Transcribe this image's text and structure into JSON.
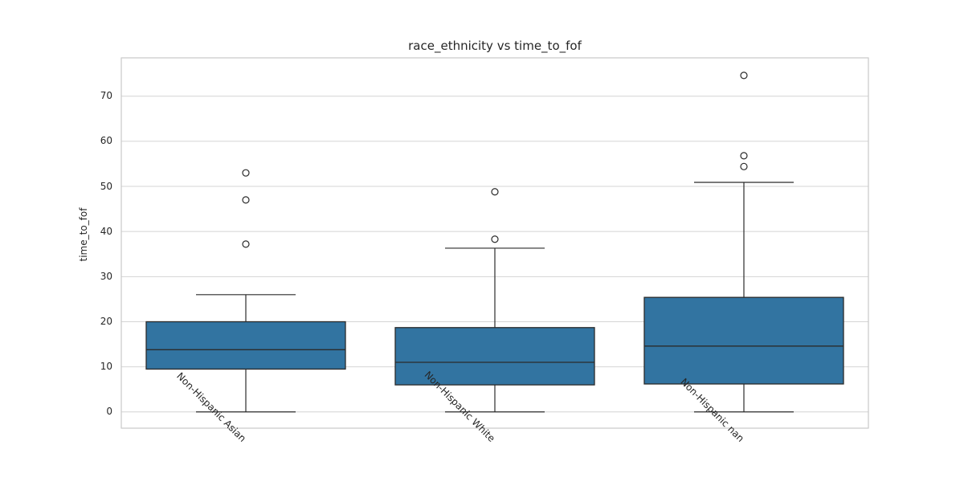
{
  "chart_data": {
    "type": "box",
    "title": "race_ethnicity vs time_to_fof",
    "xlabel": "",
    "ylabel": "time_to_fof",
    "categories": [
      "Non-Hispanic Asian",
      "Non-Hispanic White",
      "Non-Hispanic nan"
    ],
    "groups": [
      {
        "label": "Non-Hispanic Asian",
        "whislo": 0,
        "q1": 9.5,
        "med": 13.8,
        "q3": 20.0,
        "whishi": 26.0,
        "outliers": [
          37.2,
          47.0,
          53.0
        ]
      },
      {
        "label": "Non-Hispanic White",
        "whislo": 0,
        "q1": 6.0,
        "med": 11.0,
        "q3": 18.7,
        "whishi": 36.3,
        "outliers": [
          38.3,
          48.8
        ]
      },
      {
        "label": "Non-Hispanic nan",
        "whislo": 0,
        "q1": 6.2,
        "med": 14.6,
        "q3": 25.4,
        "whishi": 50.9,
        "outliers": [
          54.4,
          56.8,
          74.6
        ]
      }
    ],
    "yticks": [
      0,
      10,
      20,
      30,
      40,
      50,
      60,
      70
    ],
    "ylim": [
      -3.6,
      78.5
    ],
    "grid": "horizontal",
    "legend": null,
    "colors": {
      "box_fill": "#3274a1",
      "box_edge": "#2b2b2b",
      "grid": "#d4d4d4",
      "spine": "#c9c9c9",
      "text": "#262626"
    }
  }
}
